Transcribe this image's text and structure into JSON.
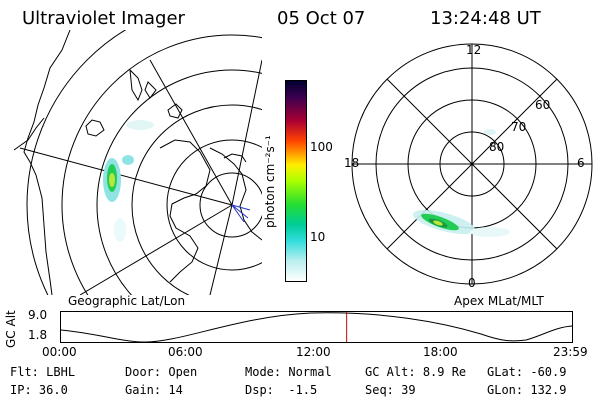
{
  "header": {
    "title": "Ultraviolet Imager",
    "date": "05 Oct 07",
    "time": "13:24:48 UT"
  },
  "colorbar": {
    "unit_label": "photon cm⁻²s⁻¹",
    "ticks": [
      "100",
      "10"
    ]
  },
  "left_map": {
    "caption": "Geographic Lat/Lon"
  },
  "right_map": {
    "caption": "Apex MLat/MLT",
    "mlt_labels": {
      "top": "12",
      "left": "18",
      "right": "6",
      "bottom": "0"
    },
    "lat_labels": [
      "60",
      "70",
      "80"
    ]
  },
  "timeline": {
    "axis_label": "GC Alt",
    "y_ticks": [
      "9.0",
      "1.8"
    ],
    "x_ticks": [
      "00:00",
      "06:00",
      "12:00",
      "18:00",
      "23:59"
    ],
    "current_time_fraction": 0.559
  },
  "info": {
    "row1": [
      {
        "key": "Flt:",
        "val": "LBHL"
      },
      {
        "key": "Door:",
        "val": "Open"
      },
      {
        "key": "Mode:",
        "val": "Normal"
      },
      {
        "key": "GC Alt:",
        "val": "8.9 Re"
      },
      {
        "key": "GLat:",
        "val": "-60.9"
      }
    ],
    "row2": [
      {
        "key": "IP:",
        "val": "36.0"
      },
      {
        "key": "Gain:",
        "val": "14"
      },
      {
        "key": "Dsp:",
        "val": "-1.5"
      },
      {
        "key": "Seq:",
        "val": "39"
      },
      {
        "key": "GLon:",
        "val": "132.9"
      }
    ]
  },
  "colors": {
    "aurora_cyan": "#8fe3e3",
    "aurora_green": "#22cc55",
    "aurora_peak": "#b8e83a",
    "time_marker": "#cc0000"
  }
}
